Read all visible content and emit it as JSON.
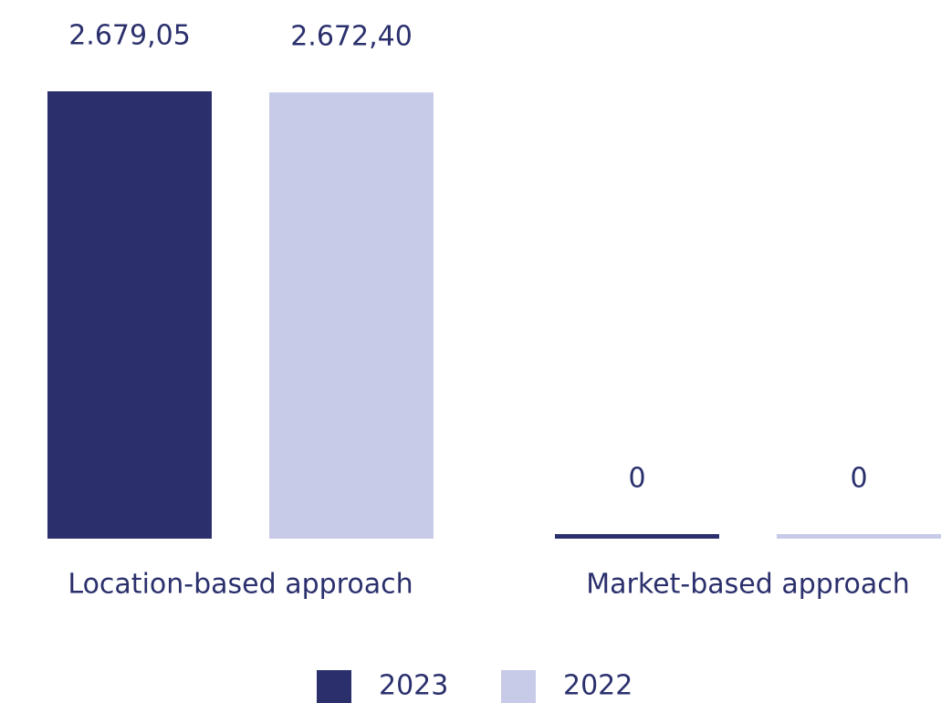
{
  "chart_data": {
    "type": "bar",
    "categories": [
      "Location-based approach",
      "Market-based approach"
    ],
    "series": [
      {
        "name": "2023",
        "color": "#2b306d",
        "values": [
          2679.05,
          0
        ],
        "value_labels": [
          "2.679,05",
          "0"
        ]
      },
      {
        "name": "2022",
        "color": "#c8cbe8",
        "values": [
          2672.4,
          0
        ],
        "value_labels": [
          "2.672,40",
          "0"
        ]
      }
    ],
    "legend": "bottom"
  }
}
